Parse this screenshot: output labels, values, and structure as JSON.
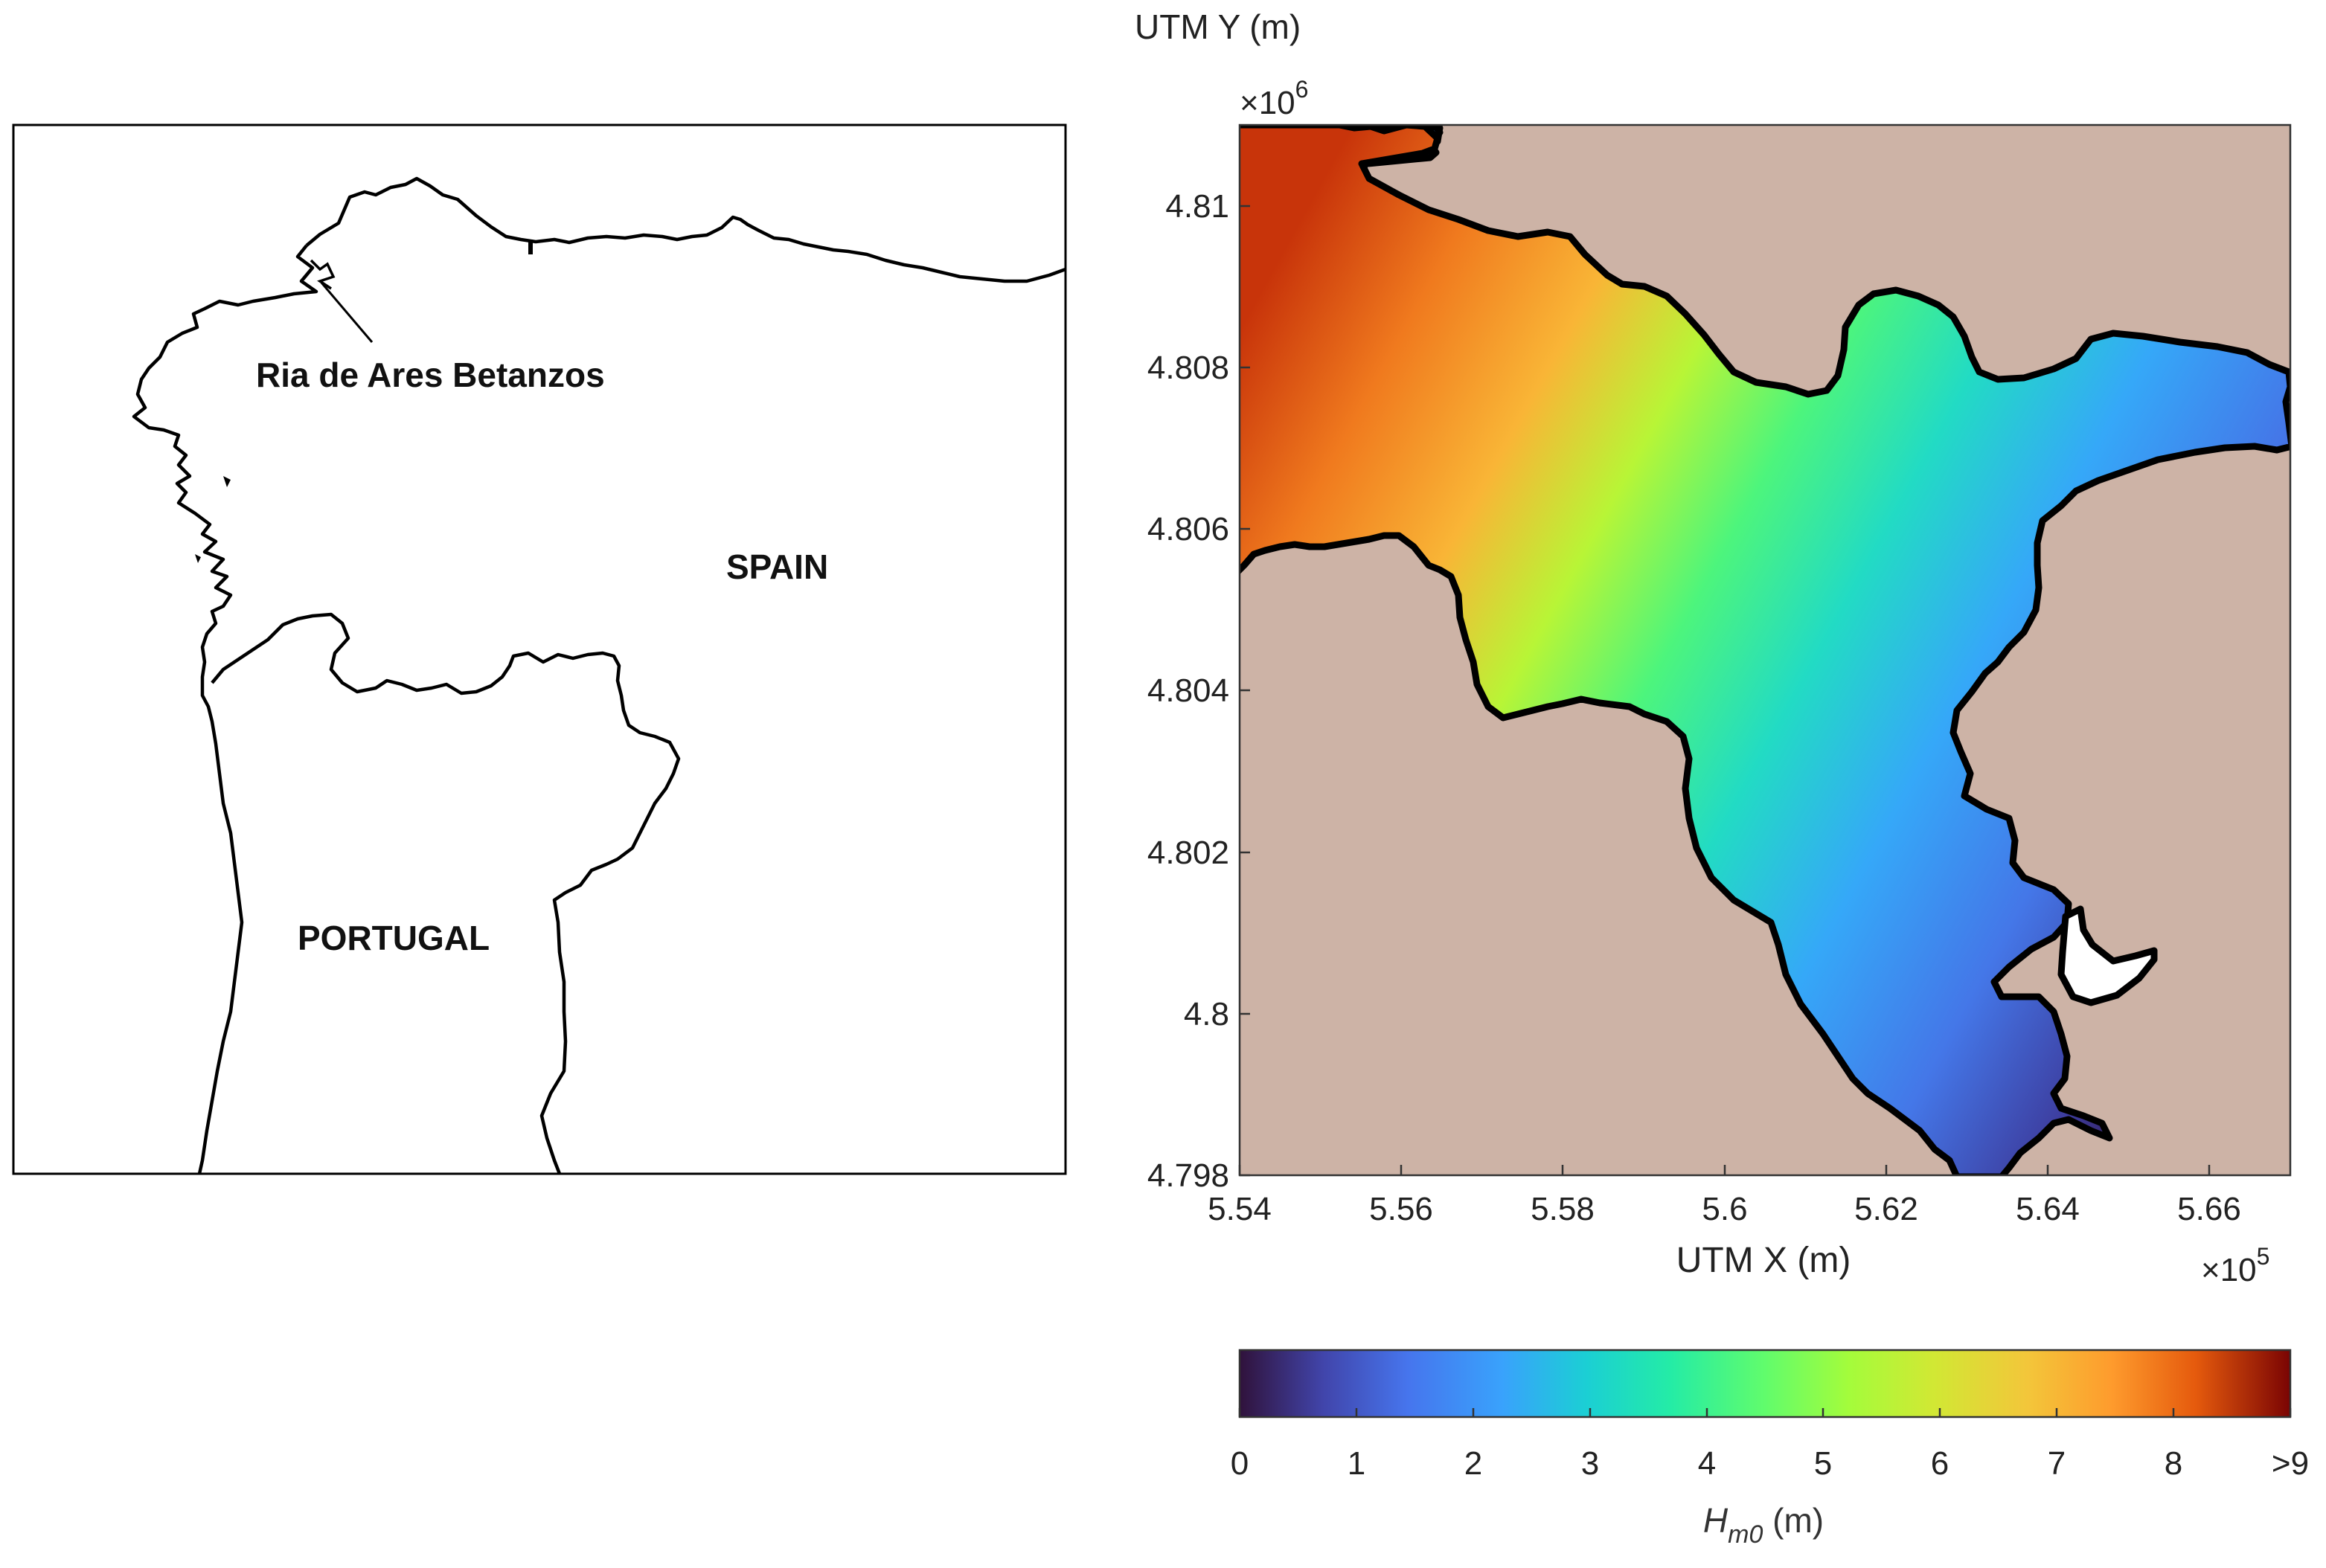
{
  "location_map": {
    "annotation": "Ria de Ares Betanzos",
    "country_1": "SPAIN",
    "country_2": "PORTUGAL"
  },
  "wave_map": {
    "y_axis_label": "UTM Y (m)",
    "y_exponent_base": "×10",
    "y_exponent_power": "6",
    "x_axis_label": "UTM X (m)",
    "x_exponent_base": "×10",
    "x_exponent_power": "5",
    "x_ticks": [
      "5.54",
      "5.56",
      "5.58",
      "5.6",
      "5.62",
      "5.64",
      "5.66"
    ],
    "y_ticks": [
      "4.81",
      "4.808",
      "4.806",
      "4.804",
      "4.802",
      "4.8",
      "4.798"
    ],
    "xlim": [
      5.54,
      5.67
    ],
    "ylim": [
      4.798,
      4.811
    ],
    "land_color": "#cdb3a6",
    "coast_color": "#000000"
  },
  "colorbar": {
    "ticks": [
      "0",
      "1",
      "2",
      "3",
      "4",
      "5",
      "6",
      "7",
      "8",
      ">9"
    ],
    "label_var": "H",
    "label_sub": "m0",
    "label_unit": " (m)",
    "range": [
      0,
      9
    ],
    "colormap": "turbo"
  }
}
